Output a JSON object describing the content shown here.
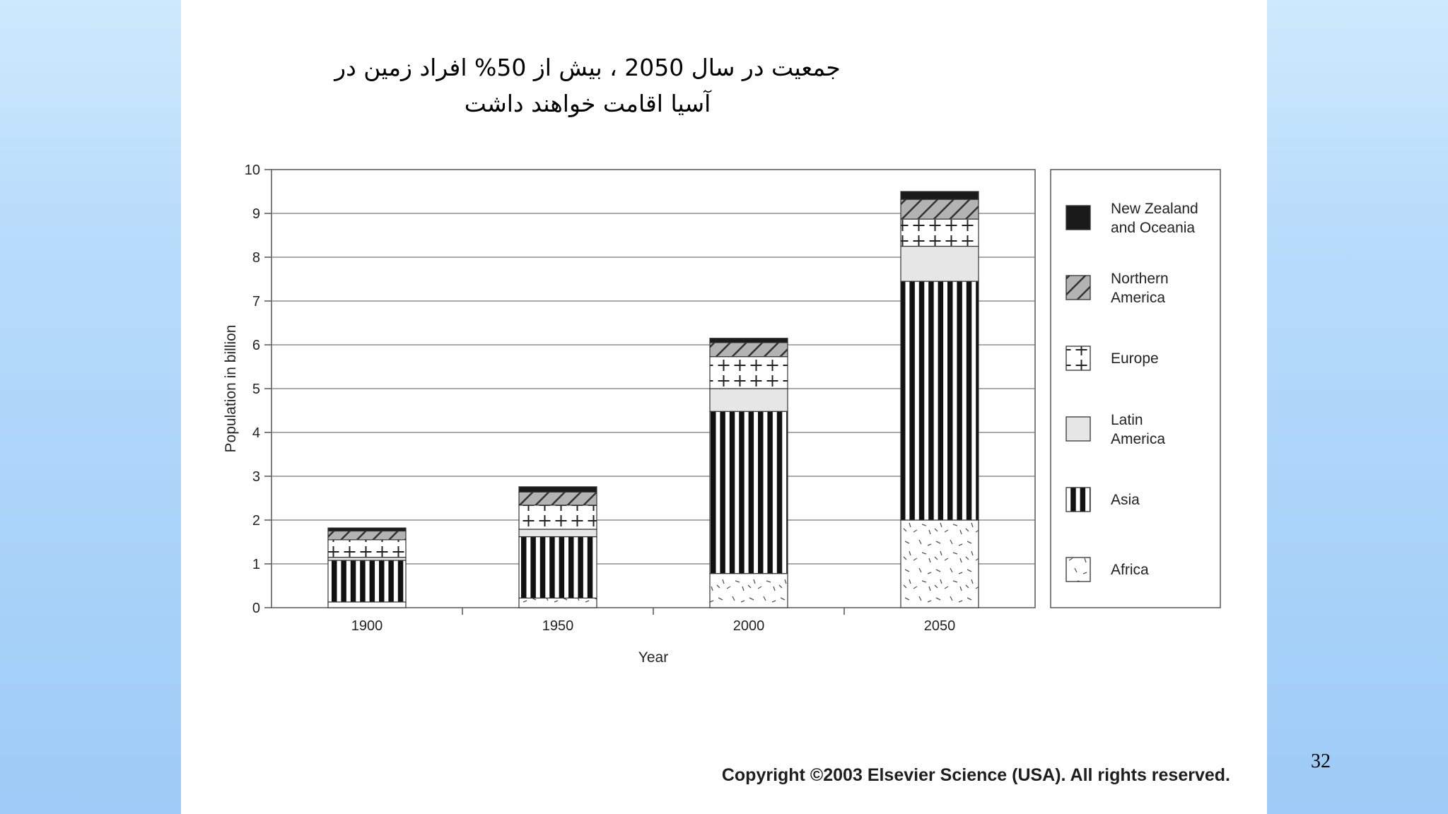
{
  "slide": {
    "title": "جمعیت در سال 2050 ، بیش از 50% افراد زمین در\nآسیا اقامت خواهند داشت",
    "copyright": "Copyright ©2003 Elsevier Science (USA). All rights reserved.",
    "page_number": "32"
  },
  "chart_data": {
    "type": "bar",
    "stacked": true,
    "categories": [
      "1900",
      "1950",
      "2000",
      "2050"
    ],
    "xlabel": "Year",
    "ylabel": "Population in billion",
    "ylim": [
      0,
      10
    ],
    "yticks": [
      0,
      1,
      2,
      3,
      4,
      5,
      6,
      7,
      8,
      9,
      10
    ],
    "grid": true,
    "legend_position": "right",
    "series": [
      {
        "name": "Africa",
        "pattern": "dashes",
        "values": [
          0.13,
          0.22,
          0.78,
          2.0
        ]
      },
      {
        "name": "Asia",
        "pattern": "vertical-stripes",
        "values": [
          0.95,
          1.4,
          3.7,
          5.45
        ]
      },
      {
        "name": "Latin America",
        "pattern": "light-gray",
        "values": [
          0.07,
          0.17,
          0.52,
          0.8
        ]
      },
      {
        "name": "Europe",
        "pattern": "crosses",
        "values": [
          0.4,
          0.55,
          0.73,
          0.62
        ]
      },
      {
        "name": "Northern America",
        "pattern": "diagonal-hatch-gray",
        "values": [
          0.2,
          0.3,
          0.32,
          0.45
        ]
      },
      {
        "name": "New Zealand and Oceania",
        "pattern": "solid-black",
        "values": [
          0.07,
          0.12,
          0.1,
          0.18
        ]
      }
    ],
    "legend_order": [
      "New Zealand and Oceania",
      "Northern America",
      "Europe",
      "Latin America",
      "Asia",
      "Africa"
    ]
  }
}
